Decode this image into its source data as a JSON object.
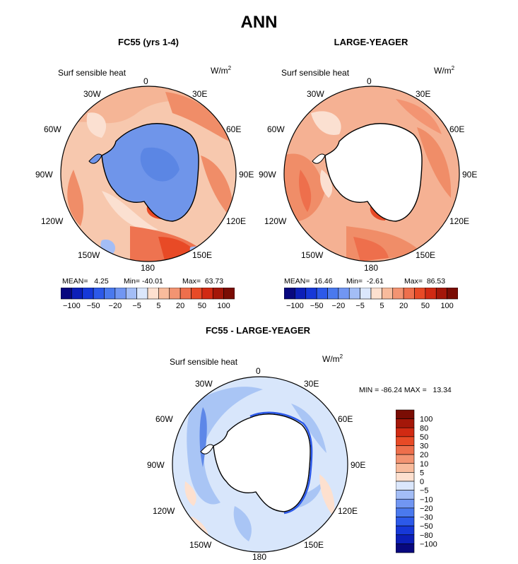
{
  "title": "ANN",
  "unit_label": "W/m",
  "unit_exp": "2",
  "variable_label": "Surf sensible heat",
  "lon_labels": [
    "0",
    "30E",
    "60E",
    "90E",
    "120E",
    "150E",
    "180",
    "150W",
    "120W",
    "90W",
    "60W",
    "30W"
  ],
  "colors": {
    "land": "#ffffff",
    "coast": "#000000",
    "ocean_mid": "#f7c3a8",
    "ocean_warm": "#f18a63",
    "ocean_hot": "#e84a26",
    "antarctic_cold": "#6f95ea",
    "antarctic_cold_dark": "#5b86e4",
    "diff_light": "#d8e6fb",
    "diff_mid": "#a9c5f5",
    "diff_dark": "#5d87e8"
  },
  "chart_data": [
    {
      "type": "heatmap",
      "title": "FC55 (yrs 1-4)",
      "projection": "south polar stereographic",
      "variable": "Surf sensible heat",
      "units": "W/m^2",
      "stats": {
        "mean_label": "MEAN=",
        "mean": "4.25",
        "min_label": "Min=",
        "min": "-40.01",
        "max_label": "Max=",
        "max": "63.73"
      },
      "colorbar": {
        "orientation": "horizontal",
        "levels": [
          -100,
          -80,
          -50,
          -30,
          -20,
          -10,
          -5,
          0,
          5,
          10,
          20,
          30,
          50,
          80,
          100
        ],
        "tick_labels": [
          "-100",
          "-50",
          "-20",
          "-5",
          "5",
          "20",
          "50",
          "100"
        ],
        "colors": [
          "#08087e",
          "#0c1fb8",
          "#1638d8",
          "#2c59e9",
          "#4a79ee",
          "#7196f2",
          "#a3bdf6",
          "#dbe7fc",
          "#fde0cf",
          "#f8bb9c",
          "#f39472",
          "#ee6f4c",
          "#e84a26",
          "#d12a13",
          "#a41709",
          "#7a0d04"
        ]
      }
    },
    {
      "type": "heatmap",
      "title": "LARGE-YEAGER",
      "projection": "south polar stereographic",
      "variable": "Surf sensible heat",
      "units": "W/m^2",
      "stats": {
        "mean_label": "MEAN=",
        "mean": "16.46",
        "min_label": "Min=",
        "min": "-2.61",
        "max_label": "Max=",
        "max": "86.53"
      },
      "colorbar": {
        "orientation": "horizontal",
        "levels": [
          -100,
          -80,
          -50,
          -30,
          -20,
          -10,
          -5,
          0,
          5,
          10,
          20,
          30,
          50,
          80,
          100
        ],
        "tick_labels": [
          "-100",
          "-50",
          "-20",
          "-5",
          "5",
          "20",
          "50",
          "100"
        ],
        "colors": [
          "#08087e",
          "#0c1fb8",
          "#1638d8",
          "#2c59e9",
          "#4a79ee",
          "#7196f2",
          "#a3bdf6",
          "#dbe7fc",
          "#fde0cf",
          "#f8bb9c",
          "#f39472",
          "#ee6f4c",
          "#e84a26",
          "#d12a13",
          "#a41709",
          "#7a0d04"
        ]
      }
    },
    {
      "type": "heatmap",
      "title": "FC55 - LARGE-YEAGER",
      "projection": "south polar stereographic",
      "variable": "Surf sensible heat",
      "units": "W/m^2",
      "stats": {
        "min_label": "MIN =",
        "min": "-86.24",
        "max_label": "MAX =",
        "max": "13.34"
      },
      "colorbar": {
        "orientation": "vertical",
        "tick_labels": [
          "100",
          "80",
          "50",
          "30",
          "20",
          "10",
          "5",
          "0",
          "-5",
          "-10",
          "-20",
          "-30",
          "-50",
          "-80",
          "-100"
        ],
        "colors": [
          "#7a0d04",
          "#a41709",
          "#d12a13",
          "#e84a26",
          "#ee6f4c",
          "#f39472",
          "#f8bb9c",
          "#fde0cf",
          "#dbe7fc",
          "#a3bdf6",
          "#7196f2",
          "#4a79ee",
          "#2c59e9",
          "#1638d8",
          "#0c1fb8",
          "#08087e"
        ]
      }
    }
  ]
}
